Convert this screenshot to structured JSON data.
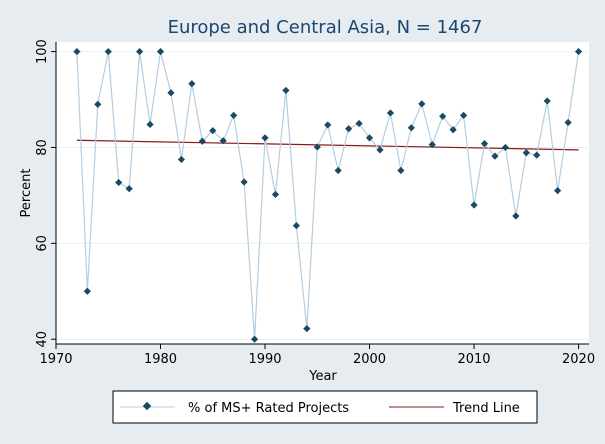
{
  "chart_data": {
    "type": "line",
    "title": "Europe and Central Asia, N = 1467",
    "xlabel": "Year",
    "ylabel": "Percent",
    "xlim": [
      1970,
      2021
    ],
    "ylim": [
      39,
      102
    ],
    "x_ticks": [
      1970,
      1980,
      1990,
      2000,
      2010,
      2020
    ],
    "y_ticks": [
      40,
      60,
      80,
      100
    ],
    "grid": {
      "horizontal": true,
      "vertical": false
    },
    "legend_position": "bottom",
    "series": [
      {
        "name": "% of MS+ Rated Projects",
        "style": "line-with-diamond-markers",
        "color": "#b4cde0",
        "marker_color": "#1a4a63",
        "points": [
          [
            1972,
            100
          ],
          [
            1973,
            50
          ],
          [
            1974,
            89
          ],
          [
            1975,
            100
          ],
          [
            1976,
            72.7
          ],
          [
            1977,
            71.4
          ],
          [
            1978,
            100
          ],
          [
            1979,
            84.8
          ],
          [
            1980,
            100
          ],
          [
            1981,
            91.4
          ],
          [
            1982,
            77.5
          ],
          [
            1983,
            93.3
          ],
          [
            1984,
            81.3
          ],
          [
            1985,
            83.5
          ],
          [
            1986,
            81.4
          ],
          [
            1987,
            86.7
          ],
          [
            1988,
            72.8
          ],
          [
            1989,
            40
          ],
          [
            1990,
            82
          ],
          [
            1991,
            70.2
          ],
          [
            1992,
            91.9
          ],
          [
            1993,
            63.7
          ],
          [
            1994,
            42.2
          ],
          [
            1995,
            80.1
          ],
          [
            1996,
            84.7
          ],
          [
            1997,
            75.2
          ],
          [
            1998,
            83.9
          ],
          [
            1999,
            85
          ],
          [
            2000,
            82
          ],
          [
            2001,
            79.5
          ],
          [
            2002,
            87.2
          ],
          [
            2003,
            75.2
          ],
          [
            2004,
            84.1
          ],
          [
            2005,
            89.1
          ],
          [
            2006,
            80.6
          ],
          [
            2007,
            86.5
          ],
          [
            2008,
            83.7
          ],
          [
            2009,
            86.7
          ],
          [
            2010,
            68
          ],
          [
            2011,
            80.8
          ],
          [
            2012,
            78.2
          ],
          [
            2013,
            80
          ],
          [
            2014,
            65.7
          ],
          [
            2015,
            78.9
          ],
          [
            2016,
            78.4
          ],
          [
            2017,
            89.7
          ],
          [
            2018,
            71
          ],
          [
            2019,
            85.2
          ],
          [
            2020,
            100
          ]
        ]
      },
      {
        "name": "Trend Line",
        "style": "line",
        "color": "#8b1a1a",
        "points": [
          [
            1972,
            81.5
          ],
          [
            2020,
            79.5
          ]
        ]
      }
    ]
  }
}
